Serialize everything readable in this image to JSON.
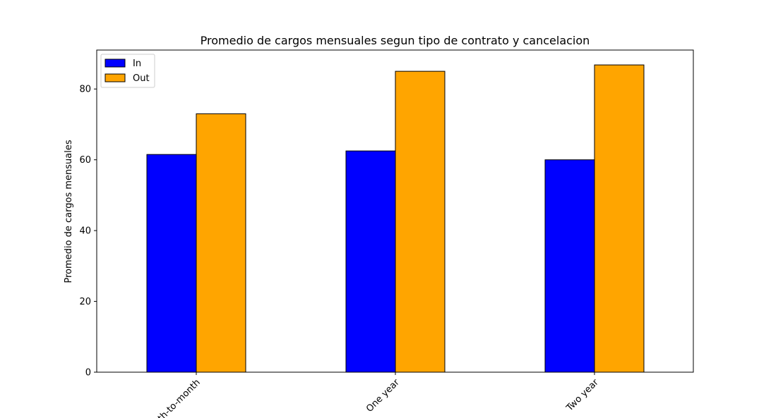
{
  "chart_data": {
    "type": "bar",
    "title": "Promedio de cargos mensuales segun tipo de contrato y cancelacion",
    "xlabel": "",
    "ylabel": "Promedio de cargos mensuales",
    "categories": [
      "Month-to-month",
      "One year",
      "Two year"
    ],
    "series": [
      {
        "name": "In",
        "values": [
          61.5,
          62.5,
          60.0
        ],
        "color": "#0000ff"
      },
      {
        "name": "Out",
        "values": [
          73.0,
          85.0,
          86.8
        ],
        "color": "#ffa500"
      }
    ],
    "ylim": [
      0,
      91
    ],
    "yticks": [
      0,
      20,
      40,
      60,
      80
    ],
    "legend_position": "top-left",
    "grid": false,
    "xtick_rotation": -45
  }
}
